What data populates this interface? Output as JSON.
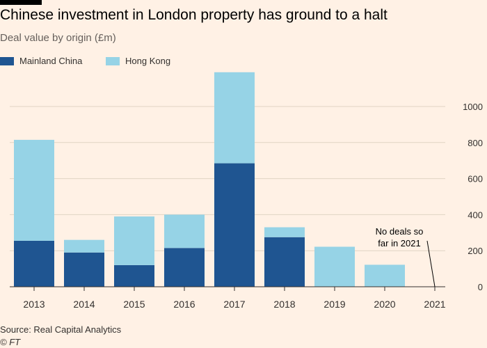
{
  "header": {
    "title": "Chinese investment in London property has ground to a halt",
    "subtitle": "Deal value by origin (£m)"
  },
  "footer": {
    "source": "Source: Real Capital Analytics",
    "credit": "© FT"
  },
  "colors": {
    "background": "#fff1e5",
    "mainland": "#1f5591",
    "hongkong": "#96d3e6",
    "grid": "#e0d4c4",
    "axis": "#33302e"
  },
  "chart_data": {
    "type": "bar",
    "stacked": true,
    "title": "Chinese investment in London property has ground to a halt",
    "subtitle": "Deal value by origin (£m)",
    "xlabel": "",
    "ylabel": "",
    "categories": [
      "2013",
      "2014",
      "2015",
      "2016",
      "2017",
      "2018",
      "2019",
      "2020",
      "2021"
    ],
    "series": [
      {
        "name": "Mainland China",
        "color": "#1f5591",
        "values": [
          255,
          190,
          120,
          215,
          685,
          275,
          0,
          0,
          0
        ]
      },
      {
        "name": "Hong Kong",
        "color": "#96d3e6",
        "values": [
          560,
          70,
          270,
          185,
          505,
          55,
          222,
          122,
          0
        ]
      }
    ],
    "ylim": [
      0,
      1200
    ],
    "yticks": [
      0,
      200,
      400,
      600,
      800,
      1000
    ],
    "grid": true,
    "legend_position": "top-left",
    "annotations": [
      {
        "category": "2021",
        "lines": [
          "No deals so",
          "far in 2021"
        ]
      }
    ]
  }
}
